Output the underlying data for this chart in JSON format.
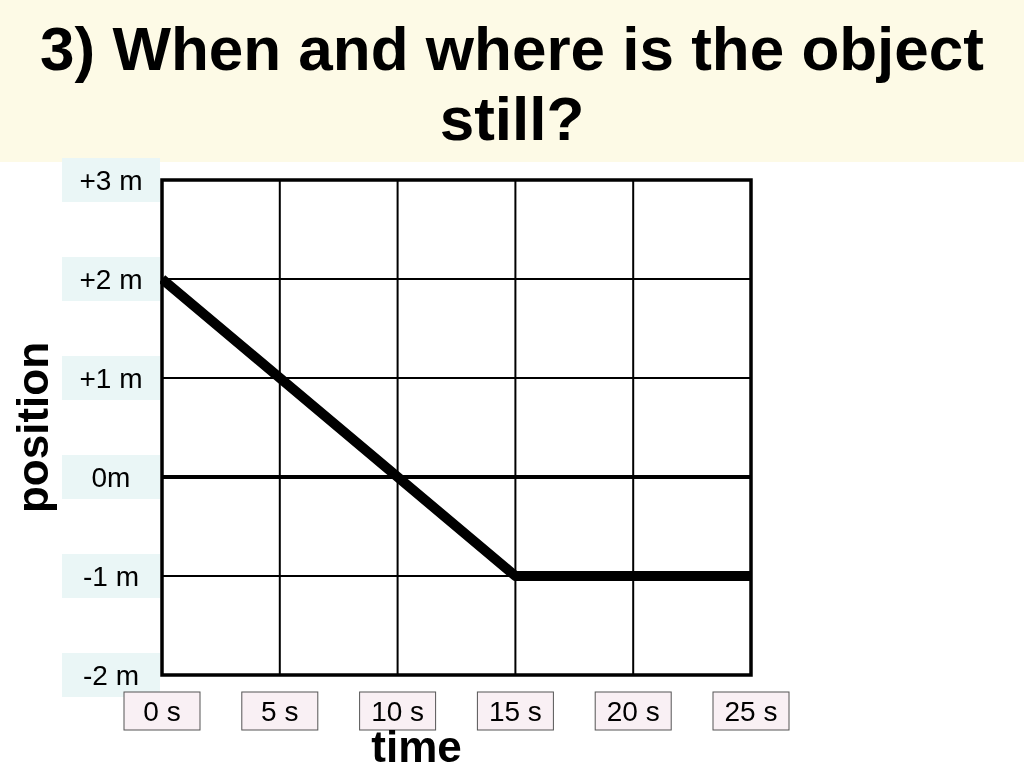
{
  "chart_data": {
    "type": "line",
    "title": "3) When and where is the object still?",
    "xlabel": "time",
    "ylabel": "position",
    "series": [
      {
        "color": "#000000",
        "x": [
          0,
          15,
          25
        ],
        "values": [
          2,
          -1,
          -1
        ]
      }
    ],
    "xlim": [
      0,
      25
    ],
    "ylim": [
      -2,
      3
    ],
    "xticks": [
      {
        "value": 0,
        "label": "0 s"
      },
      {
        "value": 5,
        "label": "5 s"
      },
      {
        "value": 10,
        "label": "10 s"
      },
      {
        "value": 15,
        "label": "15 s"
      },
      {
        "value": 20,
        "label": "20 s"
      },
      {
        "value": 25,
        "label": "25 s"
      }
    ],
    "yticks": [
      {
        "value": -2,
        "label": "-2 m"
      },
      {
        "value": -1,
        "label": "-1 m"
      },
      {
        "value": 0,
        "label": "0m"
      },
      {
        "value": 1,
        "label": "+1 m"
      },
      {
        "value": 2,
        "label": "+2 m"
      },
      {
        "value": 3,
        "label": "+3 m"
      }
    ],
    "grid": true,
    "ref_lines": [
      {
        "axis": "y",
        "value": 0,
        "color": "#000000"
      }
    ]
  }
}
